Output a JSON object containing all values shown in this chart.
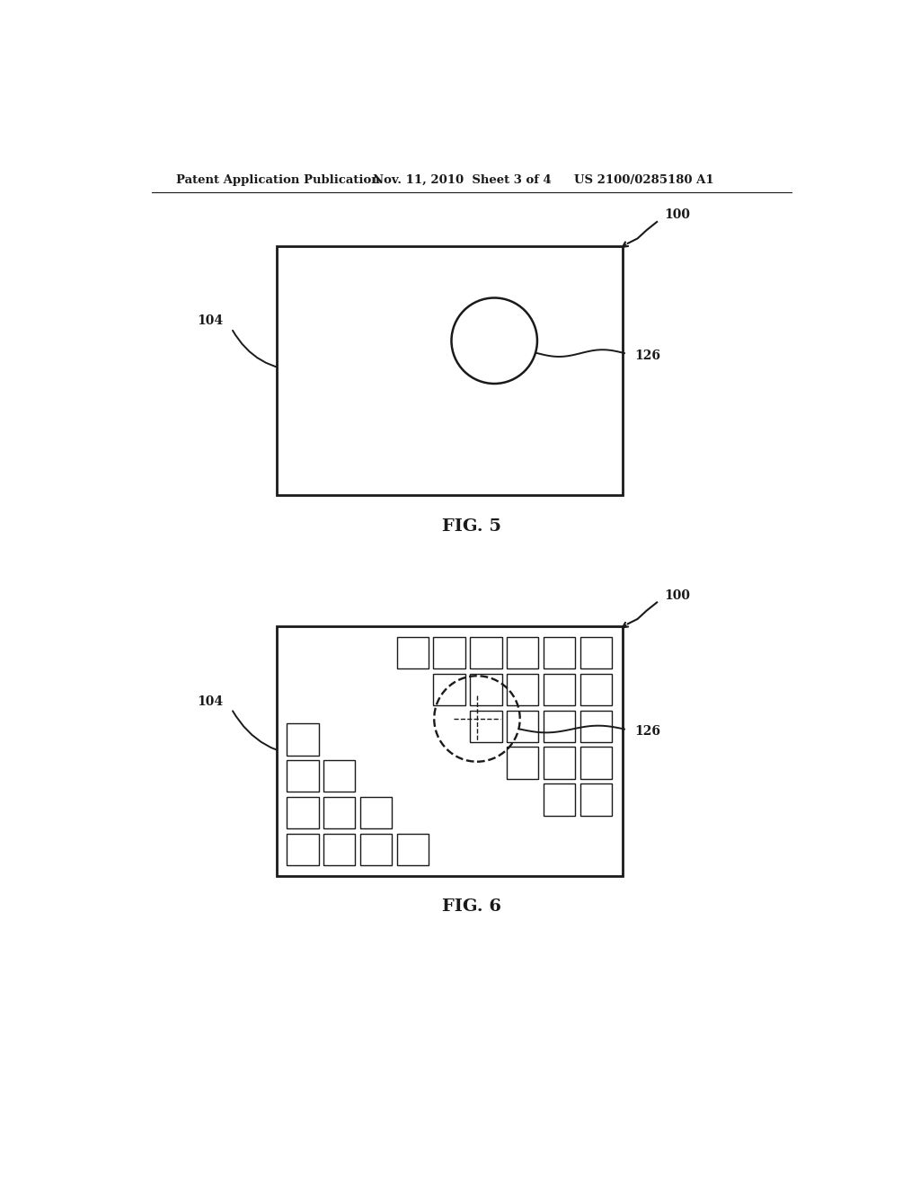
{
  "bg_color": "#ffffff",
  "header_text": "Patent Application Publication",
  "header_date": "Nov. 11, 2010  Sheet 3 of 4",
  "header_patent": "US 2100/0285180 A1",
  "fig5_label": "FIG. 5",
  "fig6_label": "FIG. 6",
  "label_100": "100",
  "label_104": "104",
  "label_126": "126",
  "line_color": "#1a1a1a",
  "text_color": "#1a1a1a"
}
